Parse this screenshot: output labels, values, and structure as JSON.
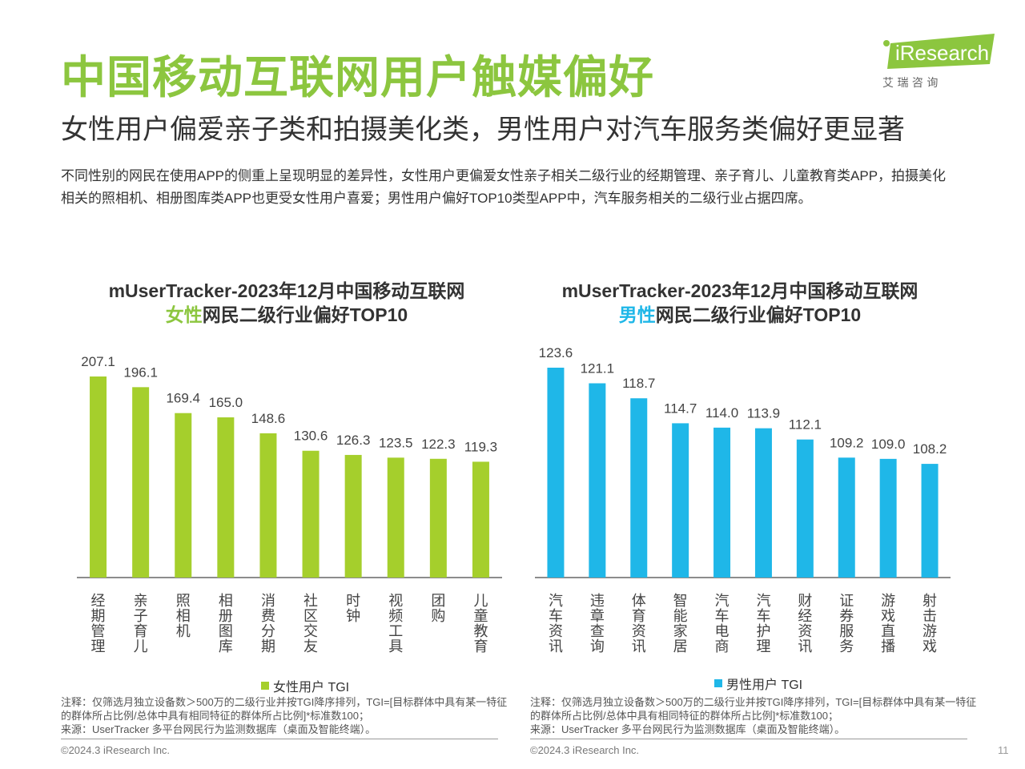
{
  "header": {
    "title": "中国移动互联网用户触媒偏好",
    "subtitle": "女性用户偏爱亲子类和拍摄美化类，男性用户对汽车服务类偏好更显著",
    "description": "不同性别的网民在使用APP的侧重上呈现明显的差异性，女性用户更偏爱女性亲子相关二级行业的经期管理、亲子育儿、儿童教育类APP，拍摄美化相关的照相机、相册图库类APP也更受女性用户喜爱；男性用户偏好TOP10类型APP中，汽车服务相关的二级行业占据四席。"
  },
  "logo": {
    "brand": "iResearch",
    "cn": "艾 瑞 咨 询"
  },
  "charts": {
    "female": {
      "title_line1": "mUserTracker-2023年12月中国移动互联网",
      "title_highlight": "女性",
      "title_rest": "网民二级行业偏好TOP10",
      "legend": "女性用户 TGI",
      "note": "注释：仅筛选月独立设备数＞500万的二级行业并按TGI降序排列，TGI=[目标群体中具有某一特征的群体所占比例/总体中具有相同特征的群体所占比例]*标准数100；",
      "source": "来源：UserTracker 多平台网民行为监测数据库（桌面及智能终端）。",
      "footer": "©2024.3 iResearch Inc."
    },
    "male": {
      "title_line1": "mUserTracker-2023年12月中国移动互联网",
      "title_highlight": "男性",
      "title_rest": "网民二级行业偏好TOP10",
      "legend": "男性用户 TGI",
      "note": "注释：仅筛选月独立设备数＞500万的二级行业并按TGI降序排列，TGI=[目标群体中具有某一特征的群体所占比例/总体中具有相同特征的群体所占比例]*标准数100；",
      "source": "来源：UserTracker 多平台网民行为监测数据库（桌面及智能终端）。",
      "footer": "©2024.3 iResearch Inc."
    }
  },
  "page_number": "11",
  "colors": {
    "female": "#a5cf2c",
    "male": "#1fb7e8",
    "title_green": "#8cc63f"
  },
  "chart_data": [
    {
      "type": "bar",
      "title": "mUserTracker-2023年12月中国移动互联网女性网民二级行业偏好TOP10",
      "categories": [
        "经期管理",
        "亲子育儿",
        "照相机",
        "相册图库",
        "消费分期",
        "社区交友",
        "时钟",
        "视频工具",
        "团购",
        "儿童教育"
      ],
      "series": [
        {
          "name": "女性用户 TGI",
          "values": [
            207.1,
            196.1,
            169.4,
            165.0,
            148.6,
            130.6,
            126.3,
            123.5,
            122.3,
            119.3
          ]
        }
      ],
      "ylim": [
        0,
        220
      ],
      "legend_position": "bottom",
      "grid": false
    },
    {
      "type": "bar",
      "title": "mUserTracker-2023年12月中国移动互联网男性网民二级行业偏好TOP10",
      "categories": [
        "汽车资讯",
        "违章查询",
        "体育资讯",
        "智能家居",
        "汽车电商",
        "汽车护理",
        "财经资讯",
        "证券服务",
        "游戏直播",
        "射击游戏"
      ],
      "series": [
        {
          "name": "男性用户 TGI",
          "values": [
            123.6,
            121.1,
            118.7,
            114.7,
            114.0,
            113.9,
            112.1,
            109.2,
            109.0,
            108.2
          ]
        }
      ],
      "ylim": [
        90,
        126
      ],
      "legend_position": "bottom",
      "grid": false
    }
  ]
}
